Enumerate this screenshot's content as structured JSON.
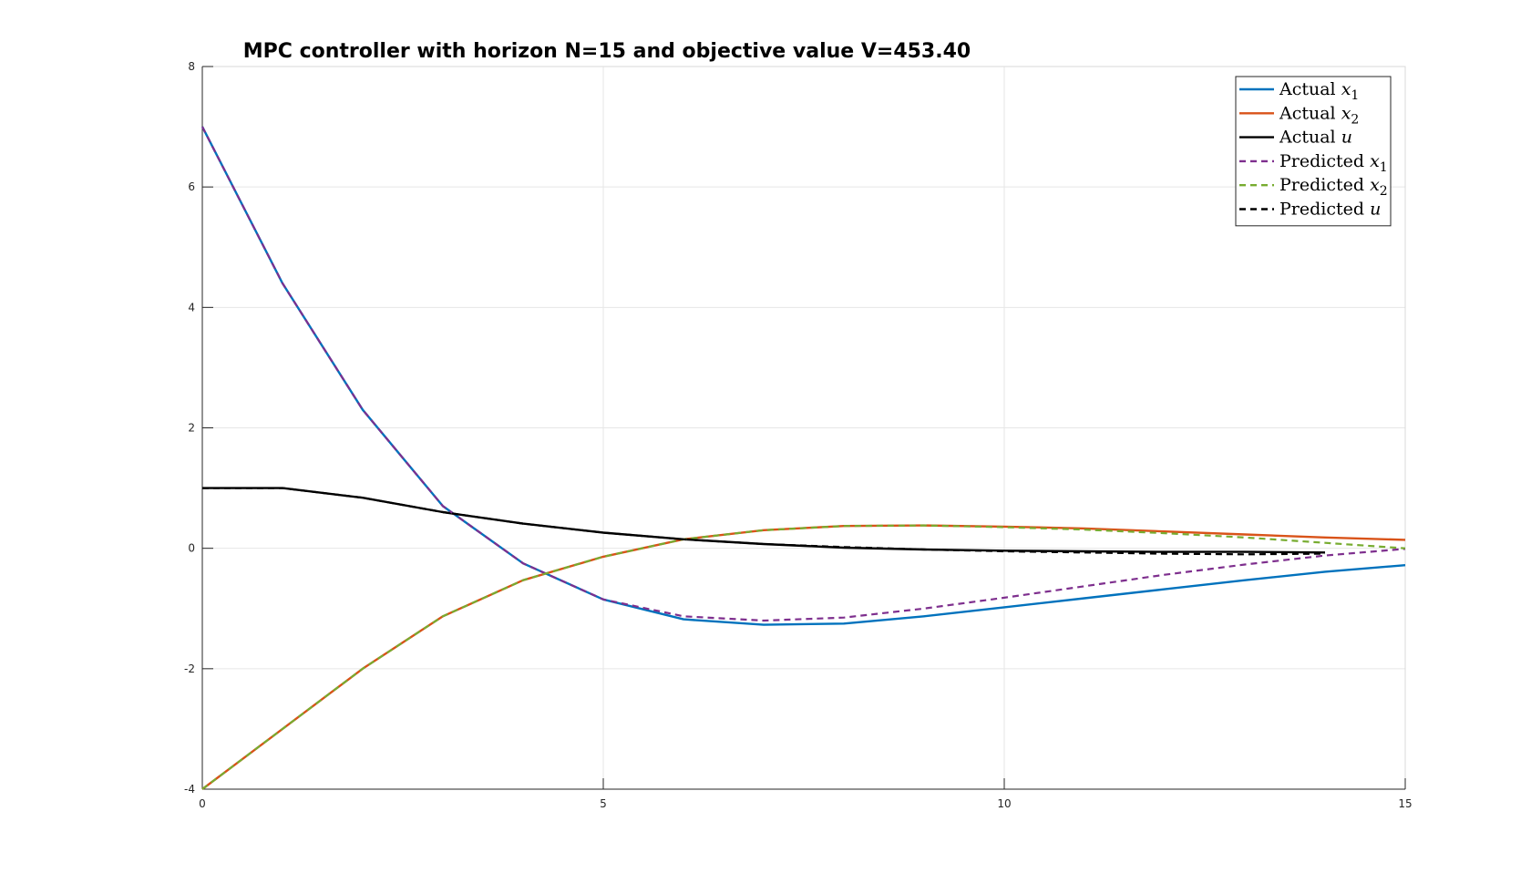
{
  "chart_data": {
    "type": "line",
    "title": "MPC controller with horizon N=15 and objective value V=453.40",
    "xlabel": "",
    "ylabel": "",
    "xlim": [
      0,
      15
    ],
    "ylim": [
      -4,
      8
    ],
    "xticks": [
      0,
      5,
      10,
      15
    ],
    "yticks": [
      -4,
      -2,
      0,
      2,
      4,
      6,
      8
    ],
    "grid": true,
    "legend_position": "top-right",
    "series": [
      {
        "name": "Actual x1",
        "legend_label": "Actual",
        "legend_math": "x",
        "legend_sub": "1",
        "color": "#0072BD",
        "style": "solid",
        "x": [
          0,
          1,
          2,
          3,
          4,
          5,
          6,
          7,
          8,
          9,
          10,
          11,
          12,
          13,
          14,
          15
        ],
        "y": [
          7.0,
          4.4,
          2.3,
          0.7,
          -0.25,
          -0.85,
          -1.18,
          -1.27,
          -1.25,
          -1.13,
          -0.98,
          -0.83,
          -0.68,
          -0.53,
          -0.39,
          -0.28
        ]
      },
      {
        "name": "Actual x2",
        "legend_label": "Actual",
        "legend_math": "x",
        "legend_sub": "2",
        "color": "#D95319",
        "style": "solid",
        "x": [
          0,
          1,
          2,
          3,
          4,
          5,
          6,
          7,
          8,
          9,
          10,
          11,
          12,
          13,
          14,
          15
        ],
        "y": [
          -4.0,
          -3.0,
          -2.0,
          -1.13,
          -0.53,
          -0.14,
          0.15,
          0.3,
          0.37,
          0.38,
          0.36,
          0.33,
          0.28,
          0.23,
          0.18,
          0.14
        ]
      },
      {
        "name": "Actual u",
        "legend_label": "Actual",
        "legend_math": "u",
        "legend_sub": "",
        "color": "#000000",
        "style": "solid",
        "x": [
          0,
          1,
          2,
          3,
          4,
          5,
          6,
          7,
          8,
          9,
          10,
          11,
          12,
          13,
          14
        ],
        "y": [
          1.0,
          1.0,
          0.84,
          0.6,
          0.41,
          0.26,
          0.15,
          0.07,
          0.01,
          -0.02,
          -0.04,
          -0.05,
          -0.06,
          -0.06,
          -0.07
        ]
      },
      {
        "name": "Predicted x1",
        "legend_label": "Predicted",
        "legend_math": "x",
        "legend_sub": "1",
        "color": "#7E2F8E",
        "style": "dashed",
        "x": [
          0,
          1,
          2,
          3,
          4,
          5,
          6,
          7,
          8,
          9,
          10,
          11,
          12,
          13,
          14,
          15
        ],
        "y": [
          7.0,
          4.4,
          2.3,
          0.7,
          -0.25,
          -0.85,
          -1.13,
          -1.2,
          -1.15,
          -1.0,
          -0.82,
          -0.63,
          -0.44,
          -0.27,
          -0.12,
          -0.01
        ]
      },
      {
        "name": "Predicted x2",
        "legend_label": "Predicted",
        "legend_math": "x",
        "legend_sub": "2",
        "color": "#77AC30",
        "style": "dashed",
        "x": [
          0,
          1,
          2,
          3,
          4,
          5,
          6,
          7,
          8,
          9,
          10,
          11,
          12,
          13,
          14,
          15
        ],
        "y": [
          -4.0,
          -3.0,
          -2.0,
          -1.13,
          -0.53,
          -0.14,
          0.15,
          0.3,
          0.37,
          0.38,
          0.35,
          0.31,
          0.25,
          0.18,
          0.09,
          0.0
        ]
      },
      {
        "name": "Predicted u",
        "legend_label": "Predicted",
        "legend_math": "u",
        "legend_sub": "",
        "color": "#000000",
        "style": "dashed",
        "x": [
          0,
          1,
          2,
          3,
          4,
          5,
          6,
          7,
          8,
          9,
          10,
          11,
          12,
          13,
          14
        ],
        "y": [
          1.0,
          1.0,
          0.84,
          0.6,
          0.41,
          0.26,
          0.15,
          0.07,
          0.02,
          -0.02,
          -0.05,
          -0.07,
          -0.09,
          -0.1,
          -0.09
        ]
      }
    ]
  }
}
